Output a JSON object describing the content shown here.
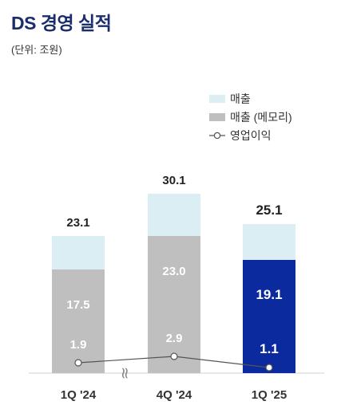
{
  "title": "DS 경영 실적",
  "unit_label": "(단위: 조원)",
  "legend": [
    {
      "label": "매출",
      "kind": "box",
      "color": "#daeef3"
    },
    {
      "label": "매출 (메모리)",
      "kind": "box",
      "color": "#bfbfbf"
    },
    {
      "label": "영업이익",
      "kind": "line",
      "color": "#555555"
    }
  ],
  "colors": {
    "revenue": "#daeef3",
    "memory": "#bfbfbf",
    "memory_highlight": "#0a2a9e",
    "profit_line": "#555555",
    "axis": "#d0d0d0"
  },
  "axis_break_symbol": "≈",
  "chart_data": {
    "type": "bar",
    "categories": [
      "1Q '24",
      "4Q '24",
      "1Q '25"
    ],
    "series": [
      {
        "name": "매출",
        "values": [
          23.1,
          30.1,
          25.1
        ]
      },
      {
        "name": "매출 (메모리)",
        "values": [
          17.5,
          23.0,
          19.1
        ]
      },
      {
        "name": "영업이익",
        "values": [
          1.9,
          2.9,
          1.1
        ]
      }
    ],
    "highlight_index": 2,
    "legend_position": "top-right"
  }
}
